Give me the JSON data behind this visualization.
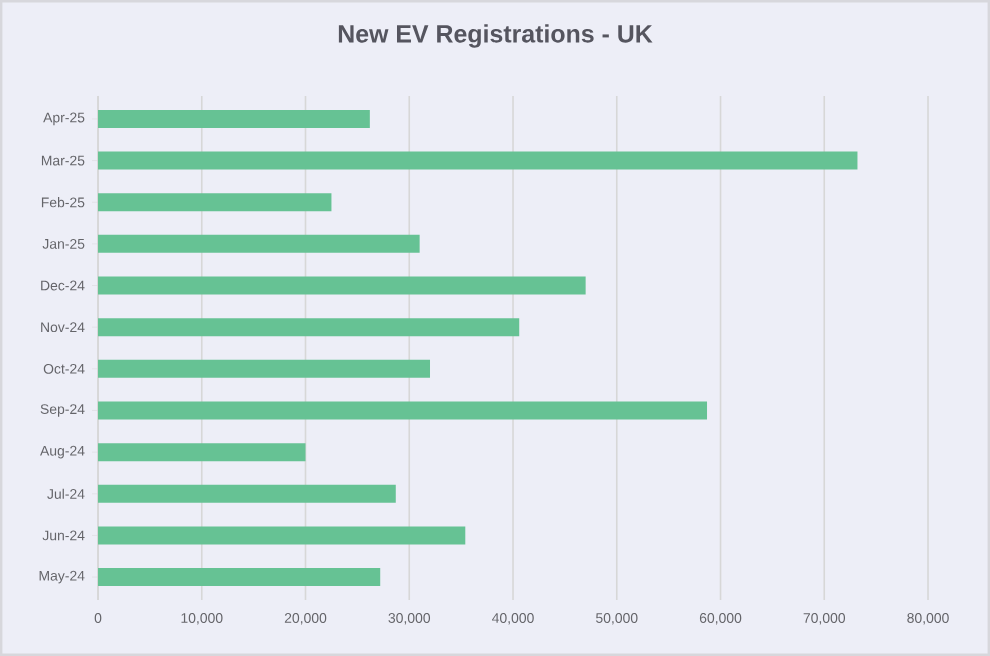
{
  "chart_data": {
    "type": "bar",
    "orientation": "horizontal",
    "title": "New EV Registrations - UK",
    "categories": [
      "Apr-25",
      "Mar-25",
      "Feb-25",
      "Jan-25",
      "Dec-24",
      "Nov-24",
      "Oct-24",
      "Sep-24",
      "Aug-24",
      "Jul-24",
      "Jun-24",
      "May-24"
    ],
    "values": [
      26200,
      73200,
      22500,
      31000,
      47000,
      40600,
      32000,
      58700,
      20000,
      28700,
      35400,
      27200
    ],
    "color": "#66c294",
    "xlim": [
      0,
      80000
    ],
    "xticks": [
      {
        "value": 0,
        "label": "0"
      },
      {
        "value": 10000,
        "label": "10,000"
      },
      {
        "value": 20000,
        "label": "20,000"
      },
      {
        "value": 30000,
        "label": "30,000"
      },
      {
        "value": 40000,
        "label": "40,000"
      },
      {
        "value": 50000,
        "label": "50,000"
      },
      {
        "value": 60000,
        "label": "60,000"
      },
      {
        "value": 70000,
        "label": "70,000"
      },
      {
        "value": 80000,
        "label": "80,000"
      }
    ],
    "grid": "x"
  }
}
